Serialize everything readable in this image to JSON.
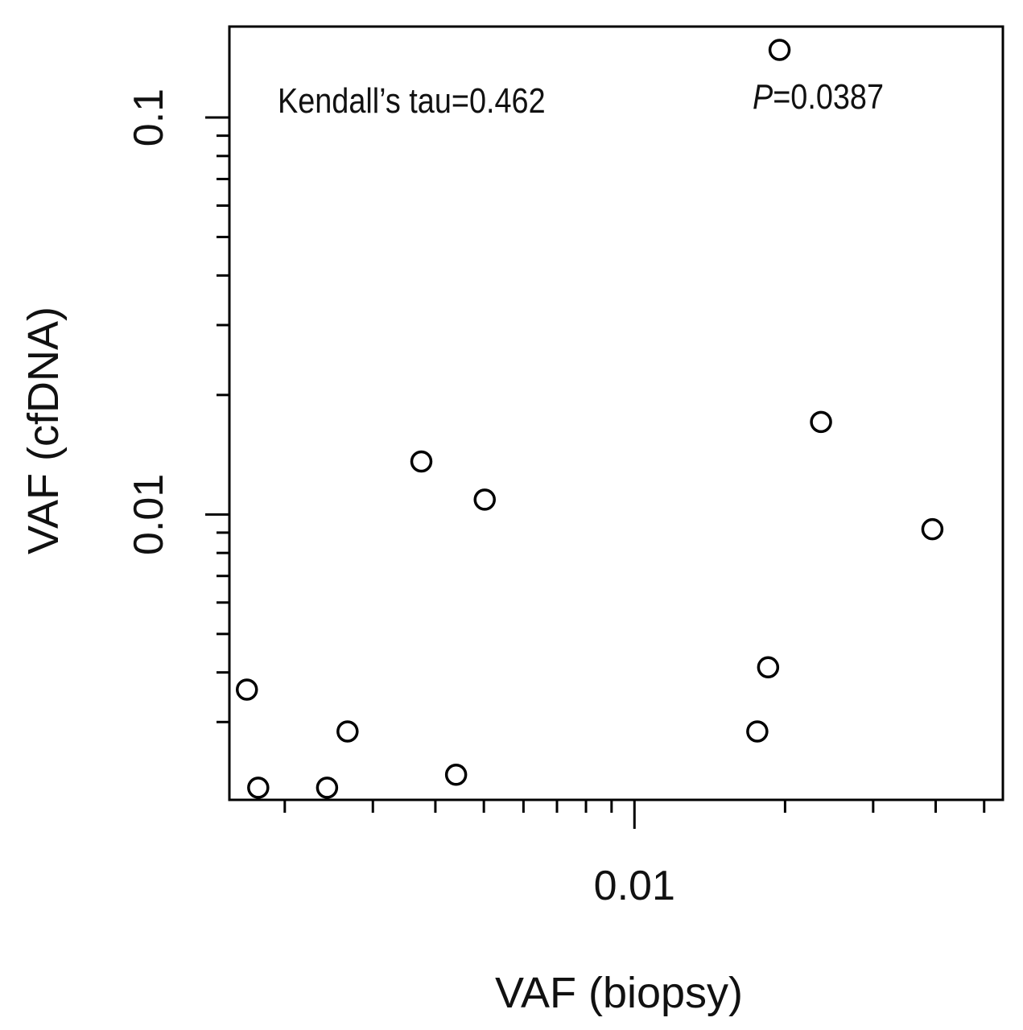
{
  "chart_data": {
    "type": "scatter",
    "xlabel": "VAF (biopsy)",
    "ylabel": "VAF (cfDNA)",
    "x_scale": "log",
    "y_scale": "log",
    "xlim": [
      0.00155,
      0.0545
    ],
    "ylim": [
      0.00191,
      0.1695
    ],
    "x_tick_labels": [
      {
        "value": 0.01,
        "label": "0.01"
      }
    ],
    "y_tick_labels": [
      {
        "value": 0.01,
        "label": "0.01"
      },
      {
        "value": 0.1,
        "label": "0.1"
      }
    ],
    "x_minor_ticks": [
      0.002,
      0.003,
      0.004,
      0.005,
      0.006,
      0.007,
      0.008,
      0.009,
      0.02,
      0.03,
      0.04,
      0.05
    ],
    "y_minor_ticks": [
      0.003,
      0.004,
      0.005,
      0.006,
      0.007,
      0.008,
      0.009,
      0.02,
      0.03,
      0.04,
      0.05,
      0.06,
      0.07,
      0.08,
      0.09
    ],
    "grid": false,
    "annotations": {
      "tau": "Kendall’s tau=0.462",
      "p_italic": "P",
      "p_value": "=0.0387"
    },
    "points": [
      {
        "x": 0.00168,
        "y": 0.00362
      },
      {
        "x": 0.00177,
        "y": 0.00205
      },
      {
        "x": 0.00243,
        "y": 0.00205
      },
      {
        "x": 0.00267,
        "y": 0.00284
      },
      {
        "x": 0.00375,
        "y": 0.0136
      },
      {
        "x": 0.0044,
        "y": 0.00221
      },
      {
        "x": 0.00502,
        "y": 0.0109
      },
      {
        "x": 0.0176,
        "y": 0.00284
      },
      {
        "x": 0.0185,
        "y": 0.00412
      },
      {
        "x": 0.0195,
        "y": 0.148
      },
      {
        "x": 0.0236,
        "y": 0.0171
      },
      {
        "x": 0.0394,
        "y": 0.00918
      }
    ]
  }
}
